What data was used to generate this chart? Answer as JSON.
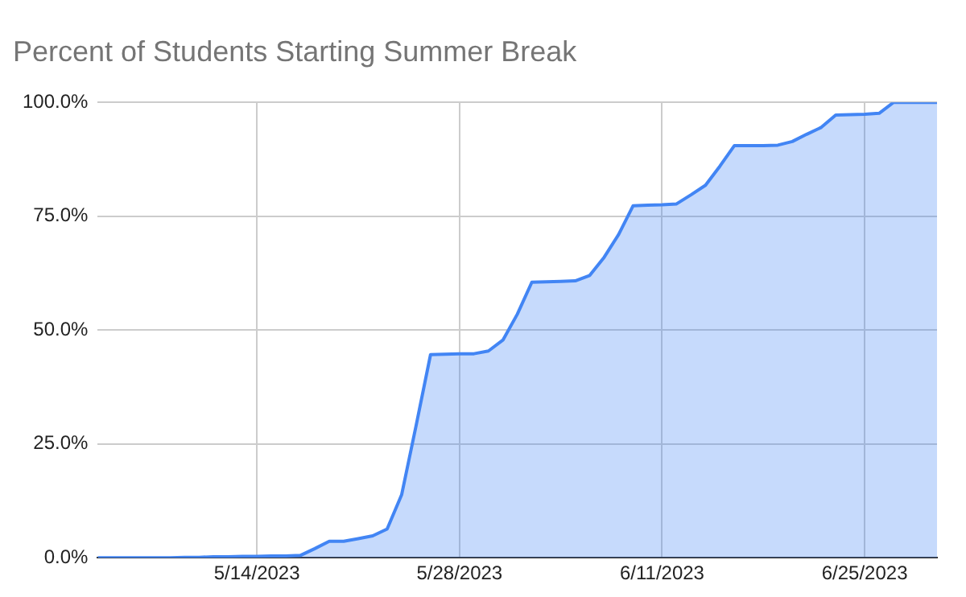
{
  "chart_data": {
    "type": "area",
    "title": "Percent of Students Starting Summer Break",
    "x": [
      "2023-05-03",
      "2023-05-04",
      "2023-05-05",
      "2023-05-06",
      "2023-05-07",
      "2023-05-08",
      "2023-05-09",
      "2023-05-10",
      "2023-05-11",
      "2023-05-12",
      "2023-05-13",
      "2023-05-14",
      "2023-05-15",
      "2023-05-16",
      "2023-05-17",
      "2023-05-18",
      "2023-05-19",
      "2023-05-20",
      "2023-05-21",
      "2023-05-22",
      "2023-05-23",
      "2023-05-24",
      "2023-05-25",
      "2023-05-26",
      "2023-05-27",
      "2023-05-28",
      "2023-05-29",
      "2023-05-30",
      "2023-05-31",
      "2023-06-01",
      "2023-06-02",
      "2023-06-03",
      "2023-06-04",
      "2023-06-05",
      "2023-06-06",
      "2023-06-07",
      "2023-06-08",
      "2023-06-09",
      "2023-06-10",
      "2023-06-11",
      "2023-06-12",
      "2023-06-13",
      "2023-06-14",
      "2023-06-15",
      "2023-06-16",
      "2023-06-17",
      "2023-06-18",
      "2023-06-19",
      "2023-06-20",
      "2023-06-21",
      "2023-06-22",
      "2023-06-23",
      "2023-06-24",
      "2023-06-25",
      "2023-06-26",
      "2023-06-27",
      "2023-06-28",
      "2023-06-29",
      "2023-06-30"
    ],
    "series": [
      {
        "color": "#4285f4",
        "values": [
          0,
          0,
          0,
          0,
          0,
          0,
          0.1,
          0.1,
          0.2,
          0.2,
          0.3,
          0.3,
          0.4,
          0.4,
          0.5,
          2,
          3.6,
          3.6,
          4.2,
          4.8,
          6.3,
          13.8,
          29,
          44.6,
          44.7,
          44.8,
          44.8,
          45.4,
          47.8,
          53.5,
          60.5,
          60.6,
          60.7,
          60.8,
          62,
          66,
          71,
          77.3,
          77.4,
          77.5,
          77.7,
          79.7,
          81.8,
          86,
          90.5,
          90.5,
          90.5,
          90.6,
          91.4,
          93,
          94.5,
          97.2,
          97.3,
          97.4,
          97.6,
          100,
          100,
          100,
          100
        ]
      }
    ],
    "xlim": [
      "2023-05-03",
      "2023-06-30"
    ],
    "xticks": [
      {
        "value": "2023-05-14",
        "label": "5/14/2023"
      },
      {
        "value": "2023-05-28",
        "label": "5/28/2023"
      },
      {
        "value": "2023-06-11",
        "label": "6/11/2023"
      },
      {
        "value": "2023-06-25",
        "label": "6/25/2023"
      }
    ],
    "ylim": [
      0,
      100
    ],
    "yticks": [
      {
        "value": 0,
        "label": "0.0%"
      },
      {
        "value": 25,
        "label": "25.0%"
      },
      {
        "value": 50,
        "label": "50.0%"
      },
      {
        "value": 75,
        "label": "75.0%"
      },
      {
        "value": 100,
        "label": "100.0%"
      }
    ],
    "grid": true
  }
}
